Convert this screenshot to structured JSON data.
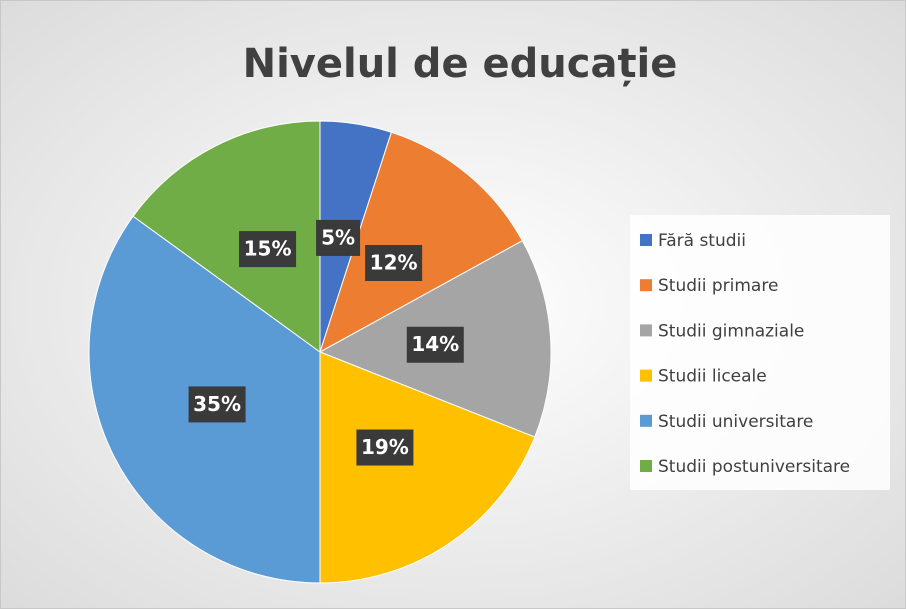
{
  "chart_data": {
    "type": "pie",
    "title": "Nivelul de educație",
    "categories": [
      "Fără studii",
      "Studii primare",
      "Studii gimnaziale",
      "Studii liceale",
      "Studii universitare",
      "Studii postuniversitare"
    ],
    "values": [
      5,
      12,
      14,
      19,
      35,
      15
    ],
    "value_labels": [
      "5%",
      "12%",
      "14%",
      "19%",
      "35%",
      "15%"
    ],
    "colors": [
      "#4472c4",
      "#ed7d31",
      "#a5a5a5",
      "#ffc000",
      "#5b9bd5",
      "#70ad47"
    ],
    "legend": "right"
  }
}
